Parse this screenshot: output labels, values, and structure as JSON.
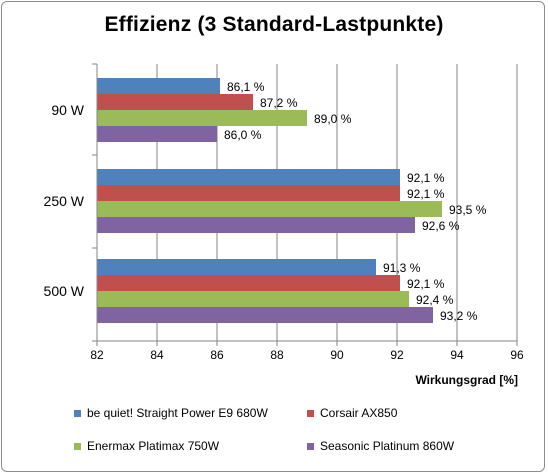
{
  "chart_data": {
    "type": "bar",
    "orientation": "horizontal",
    "title": "Effizienz (3 Standard-Lastpunkte)",
    "xlabel": "Wirkungsgrad [%]",
    "ylabel": "",
    "categories": [
      "90 W",
      "250 W",
      "500 W"
    ],
    "series": [
      {
        "name": "be quiet! Straight Power E9 680W",
        "color": "#4f81bd",
        "values": [
          86.1,
          92.1,
          91.3
        ],
        "labels": [
          "86,1 %",
          "92,1 %",
          "91,3 %"
        ]
      },
      {
        "name": "Corsair AX850",
        "color": "#c0504d",
        "values": [
          87.2,
          92.1,
          92.1
        ],
        "labels": [
          "87,2 %",
          "92,1 %",
          "92,1 %"
        ]
      },
      {
        "name": "Enermax Platimax 750W",
        "color": "#9bbb59",
        "values": [
          89.0,
          93.5,
          92.4
        ],
        "labels": [
          "89,0 %",
          "93,5 %",
          "92,4 %"
        ]
      },
      {
        "name": "Seasonic Platinum 860W",
        "color": "#8064a2",
        "values": [
          86.0,
          92.6,
          93.2
        ],
        "labels": [
          "86,0 %",
          "92,6 %",
          "93,2 %"
        ]
      }
    ],
    "xlim": [
      82,
      96
    ],
    "xticks": [
      "82",
      "84",
      "86",
      "88",
      "90",
      "92",
      "94",
      "96"
    ],
    "grid": true,
    "legend": "bottom"
  }
}
